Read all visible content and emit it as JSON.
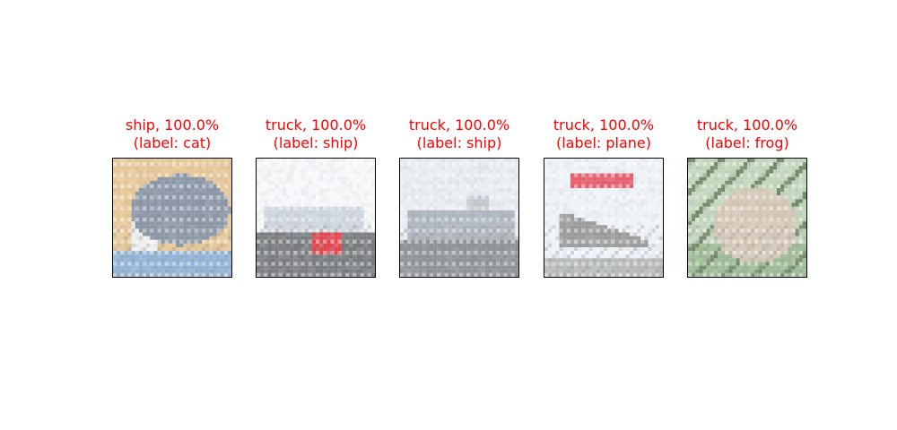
{
  "panels": [
    {
      "prediction": "ship, 100.0%",
      "label": "(label: cat)",
      "scene": "cat",
      "colors": {
        "sky": "#e8c898",
        "main": "#8a96a6",
        "ground": "#8fb4d8",
        "accent": "#f0f0f0"
      }
    },
    {
      "prediction": "truck, 100.0%",
      "label": "(label: ship)",
      "scene": "ship",
      "colors": {
        "sky": "#f6f8fb",
        "main": "#cfd6de",
        "ground": "#777a7d",
        "accent": "#e8404a"
      }
    },
    {
      "prediction": "truck, 100.0%",
      "label": "(label: ship)",
      "scene": "ship2",
      "colors": {
        "sky": "#e9edf2",
        "main": "#aeb6bf",
        "ground": "#8d9196",
        "accent": "#c4cad0"
      }
    },
    {
      "prediction": "truck, 100.0%",
      "label": "(label: plane)",
      "scene": "plane",
      "colors": {
        "sky": "#eef3f8",
        "main": "#9a9c9e",
        "ground": "#b8bcb8",
        "accent": "#e85a6a"
      }
    },
    {
      "prediction": "truck, 100.0%",
      "label": "(label: frog)",
      "scene": "frog",
      "colors": {
        "sky": "#c2d6bc",
        "main": "#d6c8b8",
        "ground": "#9cbc94",
        "accent": "#6e8a66"
      }
    }
  ]
}
